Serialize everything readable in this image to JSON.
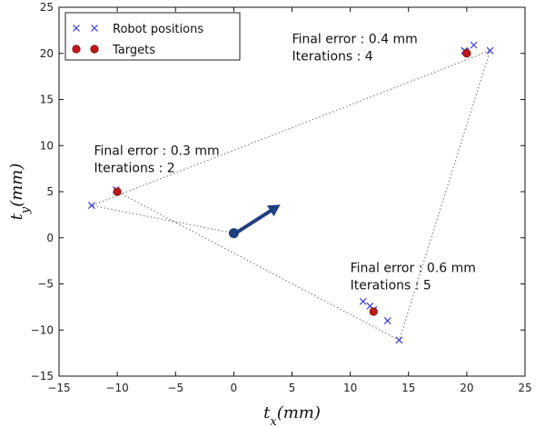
{
  "chart_data": {
    "type": "scatter",
    "xlabel": "t_x(mm)",
    "ylabel": "t_y(mm)",
    "xlim": [
      -15,
      25
    ],
    "ylim": [
      -15,
      25
    ],
    "xticks": [
      -15,
      -10,
      -5,
      0,
      5,
      10,
      15,
      20,
      25
    ],
    "yticks": [
      -15,
      -10,
      -5,
      0,
      5,
      10,
      15,
      20,
      25
    ],
    "xtick_labels": [
      "−15",
      "−10",
      "−5",
      "0",
      "5",
      "10",
      "15",
      "20",
      "25"
    ],
    "ytick_labels": [
      "−15",
      "−10",
      "−5",
      "0",
      "5",
      "10",
      "15",
      "20",
      "25"
    ],
    "grid": false,
    "legend_position": "top-left",
    "series": [
      {
        "name": "Robot positions",
        "marker": "x",
        "color": "#3a3acc",
        "points": [
          [
            -12.2,
            3.5
          ],
          [
            -10.1,
            5.2
          ],
          [
            19.8,
            20.3
          ],
          [
            20.6,
            20.9
          ],
          [
            22.0,
            20.3
          ],
          [
            19.9,
            20.2
          ],
          [
            11.1,
            -6.9
          ],
          [
            11.7,
            -7.4
          ],
          [
            12.0,
            -7.8
          ],
          [
            13.2,
            -9.0
          ],
          [
            14.2,
            -11.1
          ]
        ]
      },
      {
        "name": "Targets",
        "marker": "o",
        "color": "#c01818",
        "points": [
          [
            -10,
            5
          ],
          [
            20,
            20
          ],
          [
            12,
            -8
          ]
        ]
      }
    ],
    "path": [
      [
        0,
        0.5
      ],
      [
        -12.2,
        3.5
      ],
      [
        22.0,
        20.3
      ],
      [
        14.2,
        -11.1
      ],
      [
        -10,
        5
      ]
    ],
    "start_point": [
      0,
      0.5
    ],
    "arrow": {
      "from": [
        0.4,
        0.7
      ],
      "to": [
        4.0,
        3.6
      ],
      "color": "#1f3f7f"
    },
    "annotations": [
      {
        "lines": [
          "Final error : 0.4 mm",
          "Iterations  : 4"
        ],
        "at": [
          5,
          21.1
        ]
      },
      {
        "lines": [
          "Final error : 0.3 mm",
          "Iterations  : 2"
        ],
        "at": [
          -12,
          9.0
        ]
      },
      {
        "lines": [
          "Final error : 0.6 mm",
          "Iterations  : 5"
        ],
        "at": [
          10,
          -3.7
        ]
      }
    ]
  }
}
